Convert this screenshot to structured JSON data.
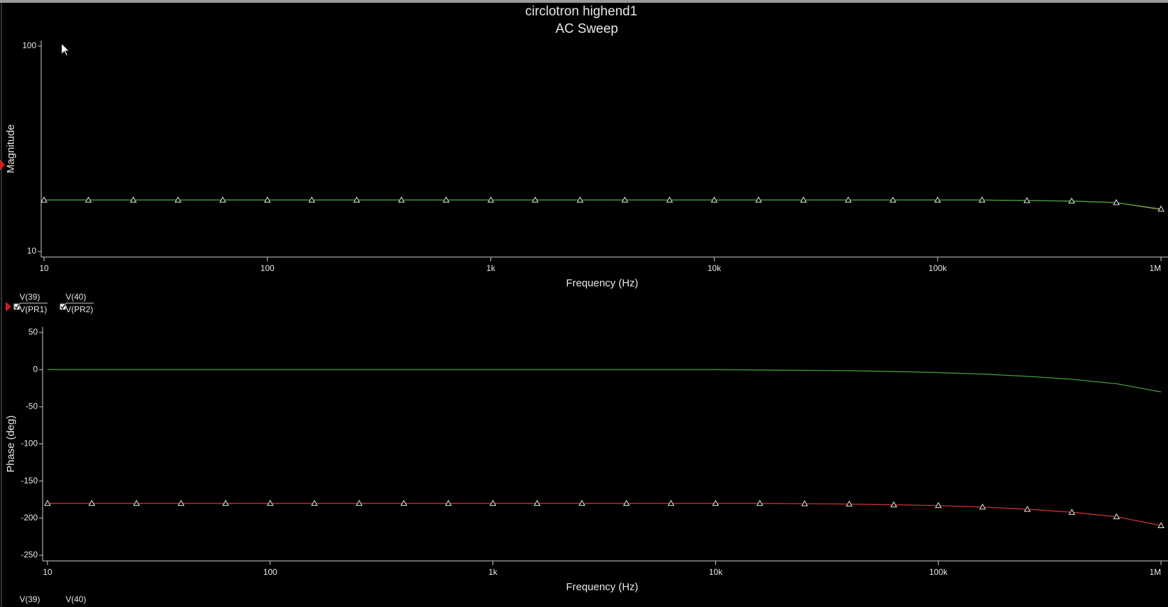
{
  "title": "circlotron highend1",
  "subtitle": "AC Sweep",
  "legend": [
    {
      "name": "V(39)",
      "denominator": "V(PR1)"
    },
    {
      "name": "V(40)",
      "denominator": "V(PR2)"
    }
  ],
  "footer_legend": [
    "V(39)",
    "V(40)"
  ],
  "chart_data": [
    {
      "type": "line",
      "y_label": "Magnitude",
      "x_label": "Frequency (Hz)",
      "xscale": "log",
      "yscale": "log",
      "xlim": [
        10,
        1000000
      ],
      "ylim": [
        10,
        100
      ],
      "xticks": [
        10,
        100,
        {
          "value": 1000,
          "label": "1k"
        },
        {
          "value": 10000,
          "label": "10k"
        },
        {
          "value": 100000,
          "label": "100k"
        },
        {
          "value": 1000000,
          "label": "1M"
        }
      ],
      "yticks": [
        10,
        100
      ],
      "x": [
        10,
        15.8,
        25.1,
        39.8,
        63.1,
        100,
        158,
        251,
        398,
        631,
        1000,
        1580,
        2510,
        3980,
        6310,
        10000,
        15800,
        25100,
        39800,
        63100,
        100000,
        158000,
        251000,
        398000,
        631000,
        1000000
      ],
      "series": [
        {
          "color": "#d08030",
          "markers": false,
          "values": [
            17.8,
            17.8,
            17.8,
            17.8,
            17.8,
            17.8,
            17.8,
            17.8,
            17.8,
            17.8,
            17.8,
            17.8,
            17.8,
            17.8,
            17.8,
            17.8,
            17.8,
            17.8,
            17.8,
            17.8,
            17.8,
            17.8,
            17.7,
            17.6,
            17.3,
            16.0
          ]
        },
        {
          "color": "#3c9c3c",
          "markers": true,
          "values": [
            17.8,
            17.8,
            17.8,
            17.8,
            17.8,
            17.8,
            17.8,
            17.8,
            17.8,
            17.8,
            17.8,
            17.8,
            17.8,
            17.8,
            17.8,
            17.8,
            17.8,
            17.8,
            17.8,
            17.8,
            17.8,
            17.8,
            17.7,
            17.6,
            17.3,
            16.1
          ]
        }
      ]
    },
    {
      "type": "line",
      "y_label": "Phase (deg)",
      "x_label": "Frequency (Hz)",
      "xscale": "log",
      "yscale": "linear",
      "xlim": [
        10,
        1000000
      ],
      "ylim": [
        -250,
        50
      ],
      "xticks": [
        10,
        100,
        {
          "value": 1000,
          "label": "1k"
        },
        {
          "value": 10000,
          "label": "10k"
        },
        {
          "value": 100000,
          "label": "100k"
        },
        {
          "value": 1000000,
          "label": "1M"
        }
      ],
      "yticks": [
        50,
        0,
        -50,
        -100,
        -150,
        -200,
        -250
      ],
      "x": [
        10,
        15.8,
        25.1,
        39.8,
        63.1,
        100,
        158,
        251,
        398,
        631,
        1000,
        1580,
        2510,
        3980,
        6310,
        10000,
        15800,
        25100,
        39800,
        63100,
        100000,
        158000,
        251000,
        398000,
        631000,
        1000000
      ],
      "series": [
        {
          "color": "#c83030",
          "markers": true,
          "values": [
            -180,
            -180,
            -180,
            -180,
            -180,
            -180,
            -180,
            -180,
            -180,
            -180,
            -180,
            -180,
            -180,
            -180,
            -180,
            -180,
            -180,
            -180.5,
            -181,
            -182,
            -183,
            -185,
            -188,
            -192,
            -198,
            -210
          ]
        },
        {
          "color": "#3c9c3c",
          "markers": false,
          "values": [
            0,
            0,
            0,
            0,
            0,
            0,
            0,
            0,
            0,
            0,
            0,
            0,
            0,
            0,
            0,
            0,
            -0.5,
            -1,
            -1.5,
            -2.5,
            -4,
            -6,
            -9,
            -13,
            -19,
            -30
          ]
        }
      ]
    }
  ]
}
